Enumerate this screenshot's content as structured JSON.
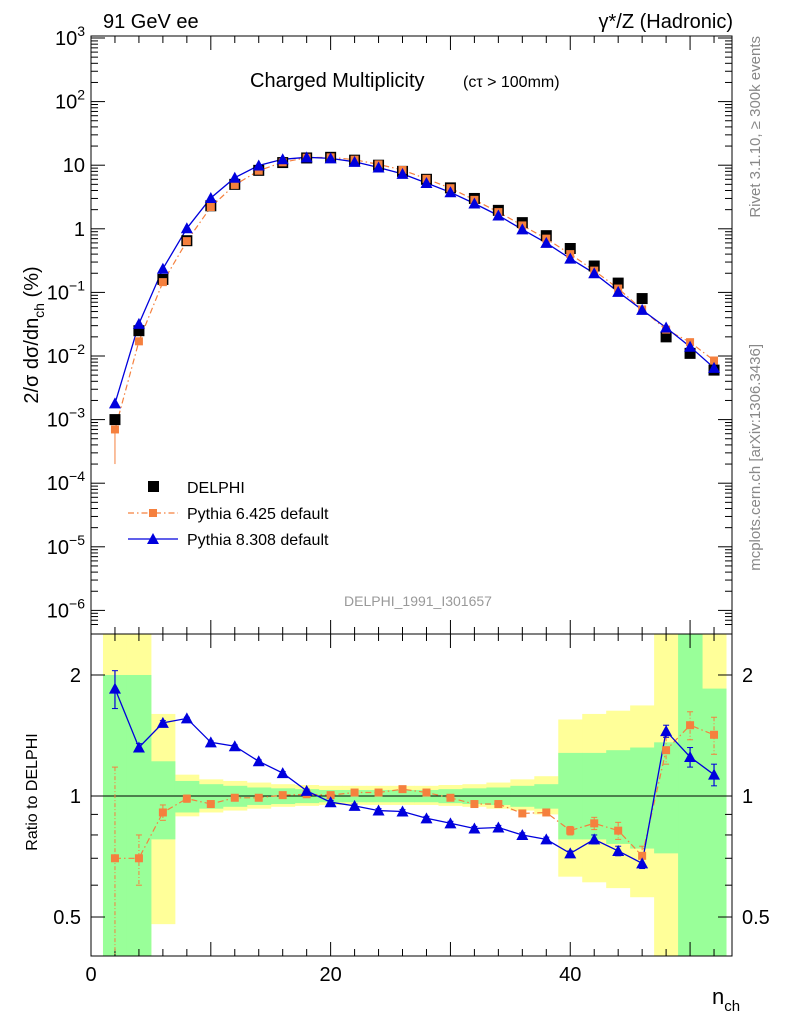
{
  "header": {
    "left": "91 GeV ee",
    "right": "γ*/Z (Hadronic)"
  },
  "side": {
    "top": "Rivet 3.1.10, ≥ 300k events",
    "bottom": "mcplots.cern.ch [arXiv:1306.3436]"
  },
  "colors": {
    "data": "#000000",
    "pythia6": "#f5803e",
    "pythia8": "#0000dd",
    "band_outer": "#ffff99",
    "band_inner": "#99ff99"
  },
  "chart_data": [
    {
      "type": "scatter",
      "title": "Charged Multiplicity",
      "subtitle": "(cτ > 100mm)",
      "watermark": "DELPHI_1991_I301657",
      "ylabel": "2/σ dσ/dn_ch (%)",
      "yscale": "log",
      "ylim": [
        5e-07,
        1000
      ],
      "xlim": [
        0,
        53.5
      ],
      "ytick_labels": [
        "10^3",
        "10^2",
        "10",
        "1",
        "10^-1",
        "10^-2",
        "10^-3",
        "10^-4",
        "10^-5",
        "10^-6"
      ],
      "legend_position": "lower-left",
      "series": [
        {
          "name": "DELPHI",
          "marker": "square",
          "x": [
            2,
            4,
            6,
            8,
            10,
            12,
            14,
            16,
            18,
            20,
            22,
            24,
            26,
            28,
            30,
            32,
            34,
            36,
            38,
            40,
            42,
            44,
            46,
            48,
            50,
            52
          ],
          "y": [
            0.001,
            0.025,
            0.16,
            0.65,
            2.3,
            5.0,
            8.3,
            11.0,
            13.0,
            13.3,
            12.0,
            10.0,
            8.0,
            6.0,
            4.4,
            3.0,
            1.95,
            1.25,
            0.78,
            0.49,
            0.26,
            0.14,
            0.08,
            0.02,
            0.011,
            0.006
          ]
        },
        {
          "name": "Pythia 6.425 default",
          "marker": "square-small",
          "linestyle": "dash-dot",
          "x": [
            2,
            4,
            6,
            8,
            10,
            12,
            14,
            16,
            18,
            20,
            22,
            24,
            26,
            28,
            30,
            32,
            34,
            36,
            38,
            40,
            42,
            44,
            46,
            48,
            50,
            52
          ],
          "y": [
            0.0007,
            0.017,
            0.145,
            0.64,
            2.2,
            4.9,
            8.2,
            11.1,
            13.1,
            13.3,
            12.2,
            10.3,
            8.4,
            6.1,
            4.35,
            2.85,
            1.83,
            1.13,
            0.7,
            0.4,
            0.22,
            0.115,
            0.054,
            0.026,
            0.0165,
            0.0085
          ]
        },
        {
          "name": "Pythia 8.308 default",
          "marker": "triangle",
          "linestyle": "solid",
          "x": [
            2,
            4,
            6,
            8,
            10,
            12,
            14,
            16,
            18,
            20,
            22,
            24,
            26,
            28,
            30,
            32,
            34,
            36,
            38,
            40,
            42,
            44,
            46,
            48,
            50,
            52
          ],
          "y": [
            0.0018,
            0.032,
            0.235,
            1.02,
            3.05,
            6.35,
            9.9,
            12.4,
            13.3,
            12.8,
            11.3,
            9.2,
            7.3,
            5.25,
            3.75,
            2.5,
            1.62,
            0.98,
            0.6,
            0.34,
            0.2,
            0.102,
            0.053,
            0.028,
            0.014,
            0.0065
          ]
        }
      ]
    },
    {
      "type": "scatter",
      "ylabel": "Ratio to DELPHI",
      "xlabel": "n_ch",
      "yscale": "log",
      "ylim": [
        0.43,
        2.35
      ],
      "xlim": [
        0,
        53.5
      ],
      "xtick_labels": [
        "0",
        "20",
        "40"
      ],
      "ytick_labels": [
        "0.5",
        "1",
        "2"
      ],
      "reference_line": 1,
      "bands": {
        "x_edges": [
          1,
          3,
          5,
          7,
          9,
          11,
          13,
          15,
          17,
          19,
          21,
          23,
          25,
          27,
          29,
          31,
          33,
          35,
          37,
          39,
          41,
          43,
          45,
          47,
          49,
          51,
          53
        ],
        "inner_low": [
          0.02,
          0.02,
          0.78,
          0.91,
          0.93,
          0.94,
          0.95,
          0.955,
          0.96,
          0.965,
          0.965,
          0.965,
          0.965,
          0.965,
          0.96,
          0.955,
          0.95,
          0.94,
          0.93,
          0.78,
          0.78,
          0.76,
          0.74,
          0.72,
          0.02,
          0.02
        ],
        "inner_high": [
          2.0,
          2.0,
          1.22,
          1.09,
          1.07,
          1.06,
          1.05,
          1.045,
          1.04,
          1.035,
          1.035,
          1.035,
          1.035,
          1.035,
          1.04,
          1.045,
          1.05,
          1.06,
          1.07,
          1.28,
          1.28,
          1.3,
          1.32,
          1.36,
          5.0,
          1.85
        ],
        "outer_low": [
          0.02,
          0.02,
          0.48,
          0.89,
          0.91,
          0.92,
          0.93,
          0.94,
          0.945,
          0.95,
          0.95,
          0.95,
          0.95,
          0.95,
          0.945,
          0.94,
          0.93,
          0.92,
          0.9,
          0.63,
          0.61,
          0.59,
          0.56,
          0.02,
          0.02,
          0.02
        ],
        "outer_high": [
          5.0,
          5.0,
          1.6,
          1.13,
          1.1,
          1.09,
          1.08,
          1.07,
          1.065,
          1.06,
          1.06,
          1.06,
          1.06,
          1.06,
          1.065,
          1.07,
          1.08,
          1.1,
          1.12,
          1.55,
          1.6,
          1.63,
          1.68,
          5.0,
          5.0,
          5.0
        ]
      },
      "series": [
        {
          "name": "Pythia 6.425 default",
          "x": [
            2,
            4,
            6,
            8,
            10,
            12,
            14,
            16,
            18,
            20,
            22,
            24,
            26,
            28,
            30,
            32,
            34,
            36,
            38,
            40,
            42,
            44,
            46,
            48,
            50,
            52
          ],
          "y": [
            0.7,
            0.7,
            0.91,
            0.985,
            0.955,
            0.99,
            0.99,
            1.005,
            1.01,
            1.005,
            1.02,
            1.02,
            1.04,
            1.02,
            0.99,
            0.955,
            0.955,
            0.905,
            0.91,
            0.82,
            0.855,
            0.82,
            0.71,
            1.3,
            1.5,
            1.42
          ],
          "err": [
            0.48,
            0.1,
            0.04,
            0.02,
            0.01,
            0.01,
            0.01,
            0.01,
            0.01,
            0.01,
            0.01,
            0.01,
            0.01,
            0.01,
            0.01,
            0.01,
            0.01,
            0.01,
            0.01,
            0.02,
            0.03,
            0.04,
            0.04,
            0.1,
            0.12,
            0.15
          ]
        },
        {
          "name": "Pythia 8.308 default",
          "x": [
            2,
            4,
            6,
            8,
            10,
            12,
            14,
            16,
            18,
            20,
            22,
            24,
            26,
            28,
            30,
            32,
            34,
            36,
            38,
            40,
            42,
            44,
            46,
            48,
            50,
            52
          ],
          "y": [
            1.85,
            1.32,
            1.52,
            1.56,
            1.36,
            1.33,
            1.22,
            1.14,
            1.03,
            0.965,
            0.945,
            0.92,
            0.915,
            0.88,
            0.855,
            0.83,
            0.835,
            0.8,
            0.78,
            0.72,
            0.78,
            0.73,
            0.68,
            1.45,
            1.25,
            1.13
          ],
          "err": [
            0.2,
            0.03,
            0.02,
            0.01,
            0.01,
            0.01,
            0.01,
            0.01,
            0.01,
            0.01,
            0.01,
            0.01,
            0.01,
            0.01,
            0.01,
            0.01,
            0.01,
            0.01,
            0.01,
            0.01,
            0.02,
            0.02,
            0.02,
            0.05,
            0.07,
            0.07
          ]
        }
      ]
    }
  ]
}
